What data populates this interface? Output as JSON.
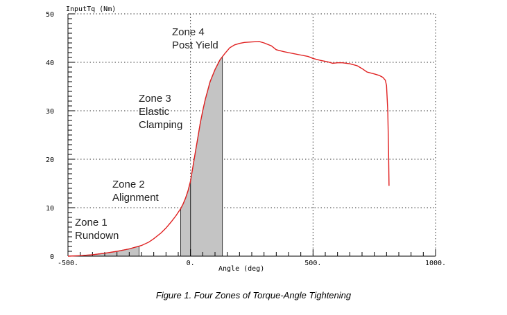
{
  "caption": "Figure 1. Four Zones of Torque-Angle Tightening",
  "chart_data": {
    "type": "line",
    "title": "",
    "xlabel": "Angle (deg)",
    "ylabel": "InputTq (Nm)",
    "xlim": [
      -500,
      1000
    ],
    "ylim": [
      0,
      50
    ],
    "xticks": [
      -500,
      0,
      500,
      1000
    ],
    "xtick_labels": [
      "-500.",
      "0.",
      "500.",
      "1000."
    ],
    "yticks": [
      0,
      10,
      20,
      30,
      40,
      50
    ],
    "ytick_labels": [
      "0",
      "10",
      "20",
      "30",
      "40",
      "50"
    ],
    "grid": true,
    "line_color": "#e02020",
    "shade_color": "#c4c4c4",
    "series": [
      {
        "x": [
          -500,
          -450,
          -400,
          -350,
          -300,
          -250,
          -200,
          -170,
          -150,
          -120,
          -100,
          -80,
          -60,
          -40,
          -30,
          -20,
          -10,
          0,
          10,
          20,
          30,
          40,
          50,
          60,
          80,
          100,
          120,
          140,
          160,
          180,
          200,
          220,
          250,
          280,
          300,
          330,
          350,
          380,
          400,
          420,
          450,
          480,
          500,
          530,
          560,
          580,
          600,
          620,
          650,
          680,
          700,
          720,
          750,
          770,
          785,
          795,
          800,
          805,
          808,
          810
        ],
        "y": [
          0,
          0.1,
          0.3,
          0.6,
          1.0,
          1.5,
          2.2,
          2.9,
          3.6,
          4.8,
          5.8,
          7.0,
          8.3,
          9.8,
          10.8,
          12.0,
          13.5,
          15.5,
          18.5,
          21.5,
          24.5,
          27.5,
          30.0,
          32.3,
          36.0,
          38.5,
          40.5,
          41.8,
          43.0,
          43.6,
          43.9,
          44.1,
          44.2,
          44.3,
          44.0,
          43.4,
          42.6,
          42.2,
          42.0,
          41.8,
          41.5,
          41.2,
          40.8,
          40.4,
          40.1,
          39.8,
          39.9,
          39.9,
          39.7,
          39.3,
          38.7,
          38.0,
          37.6,
          37.3,
          36.9,
          36.3,
          35.2,
          30.0,
          22.0,
          14.5
        ]
      }
    ],
    "shaded_regions": [
      {
        "name": "Zone 1",
        "x": [
          -500,
          -210
        ]
      },
      {
        "name": "Zone 2",
        "x": [
          -40,
          0
        ]
      },
      {
        "name": "Zone 3",
        "x": [
          0,
          130
        ]
      }
    ],
    "annotations": [
      {
        "zone": "zone-1",
        "lines": [
          "Zone 1",
          "Rundown"
        ]
      },
      {
        "zone": "zone-2",
        "lines": [
          "Zone 2",
          "Alignment"
        ]
      },
      {
        "zone": "zone-3",
        "lines": [
          "Zone 3",
          "Elastic",
          "Clamping"
        ]
      },
      {
        "zone": "zone-4",
        "lines": [
          "Zone 4",
          "Post Yield"
        ]
      }
    ]
  }
}
